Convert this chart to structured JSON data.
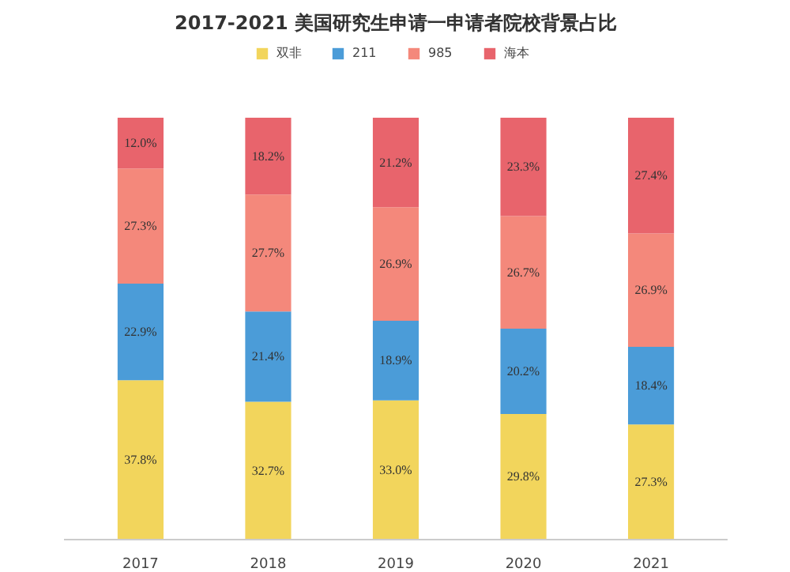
{
  "chart_data": {
    "type": "bar",
    "title": "2017-2021 美国研究生申请一申请者院校背景占比",
    "stacked": true,
    "legend": "top",
    "grid": false,
    "categories": [
      "2017",
      "2018",
      "2019",
      "2020",
      "2021"
    ],
    "series": [
      {
        "name": "双非",
        "color": "#f2d55c",
        "values": [
          37.8,
          32.7,
          33.0,
          29.8,
          27.3
        ],
        "value_labels": [
          "37.8%",
          "32.7%",
          "33.0%",
          "29.8%",
          "27.3%"
        ]
      },
      {
        "name": "211",
        "color": "#4b9cd8",
        "values": [
          22.9,
          21.4,
          18.9,
          20.2,
          18.4
        ],
        "value_labels": [
          "22.9%",
          "21.4%",
          "18.9%",
          "20.2%",
          "18.4%"
        ]
      },
      {
        "name": "985",
        "color": "#f4887b",
        "values": [
          27.3,
          27.7,
          26.9,
          26.7,
          26.9
        ],
        "value_labels": [
          "27.3%",
          "27.7%",
          "26.9%",
          "26.7%",
          "26.9%"
        ]
      },
      {
        "name": "海本",
        "color": "#e8646c",
        "values": [
          12.0,
          18.2,
          21.2,
          23.3,
          27.4
        ],
        "value_labels": [
          "12.0%",
          "18.2%",
          "21.2%",
          "23.3%",
          "27.4%"
        ]
      }
    ]
  }
}
